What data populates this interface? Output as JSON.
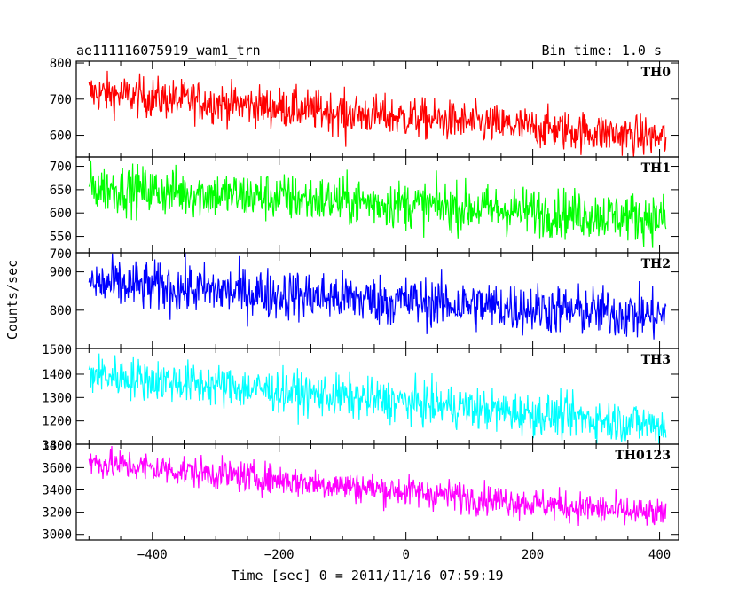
{
  "chart_data": {
    "type": "line",
    "title": "ae111116075919_wam1_trn",
    "bin_label": "Bin time: 1.0 s",
    "xlabel": "Time [sec] 0 = 2011/11/16 07:59:19",
    "ylabel": "Counts/sec",
    "xlim": [
      -520,
      430
    ],
    "x_ticks": [
      -400,
      -200,
      0,
      200,
      400
    ],
    "x_range": [
      -500,
      410
    ],
    "panels": [
      {
        "name": "TH0",
        "color": "#ff0000",
        "ylim": [
          540,
          805
        ],
        "yticks": [
          600,
          700,
          800
        ],
        "start": 718,
        "end": 592,
        "noise": 28,
        "dip_x": -95,
        "dip_depth": 150
      },
      {
        "name": "TH1",
        "color": "#00ff00",
        "ylim": [
          515,
          720
        ],
        "yticks": [
          550,
          600,
          650,
          700
        ],
        "start": 655,
        "end": 588,
        "noise": 26
      },
      {
        "name": "TH2",
        "color": "#0000ff",
        "ylim": [
          700,
          950
        ],
        "yticks": [
          800,
          900
        ],
        "extra_ytick_label": "700",
        "start": 870,
        "end": 785,
        "noise": 33
      },
      {
        "name": "TH3",
        "color": "#00ffff",
        "ylim": [
          1100,
          1510
        ],
        "yticks": [
          1200,
          1300,
          1400
        ],
        "extra_ytick_label": "1500",
        "start": 1400,
        "end": 1180,
        "noise": 45
      },
      {
        "name": "TH0123",
        "color": "#ff00ff",
        "ylim": [
          2950,
          3810
        ],
        "yticks": [
          3000,
          3200,
          3400,
          3600
        ],
        "extra_ytick_label": "3800",
        "overlap_label": "1400",
        "start": 3650,
        "end": 3170,
        "noise": 70
      }
    ]
  }
}
